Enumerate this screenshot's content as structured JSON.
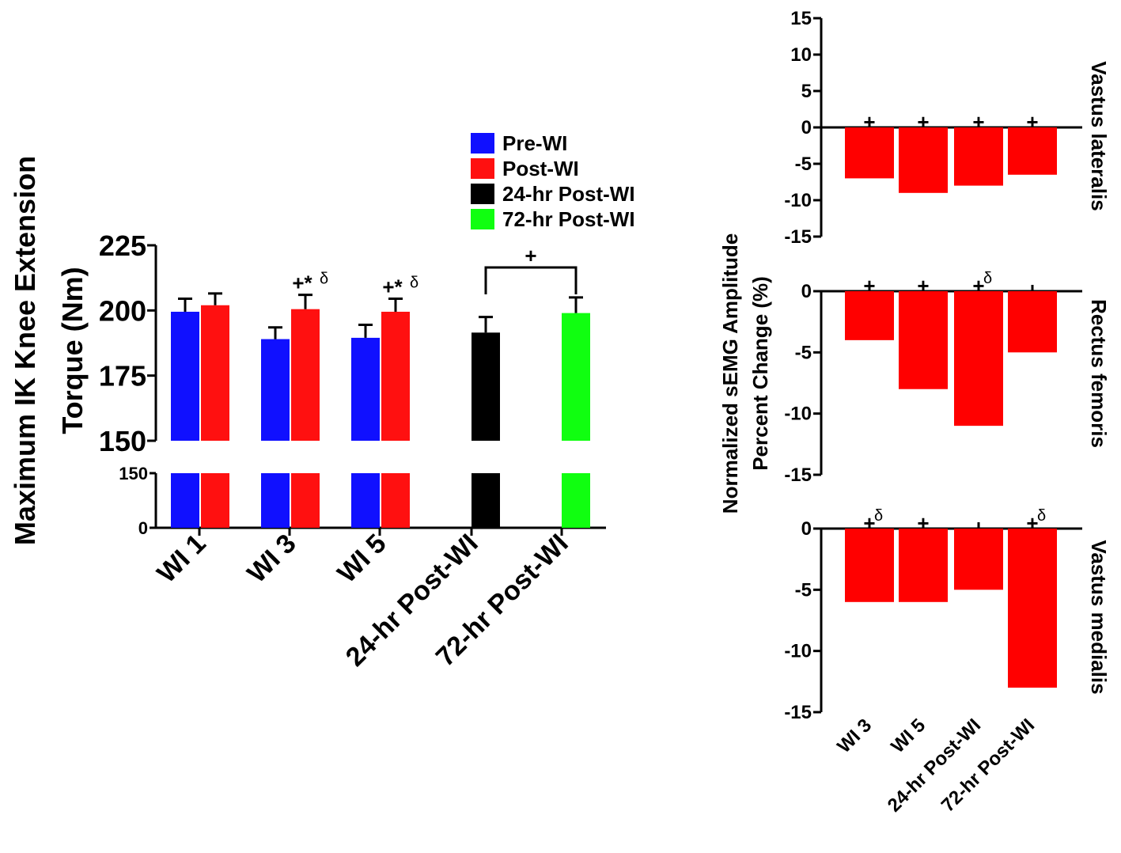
{
  "chart_data": [
    {
      "type": "bar",
      "title": "",
      "ylabel_line1": "Maximum IK Knee Extension",
      "ylabel_line2": "Torque (Nm)",
      "xlabel": "",
      "categories": [
        "WI 1",
        "WI 3",
        "WI 5",
        "24-hr Post-WI",
        "72-hr Post-WI"
      ],
      "axis_break": {
        "upper": {
          "ylim": [
            150,
            225
          ],
          "ticks": [
            "150",
            "175",
            "200",
            "225"
          ]
        },
        "lower": {
          "ylim": [
            0,
            150
          ],
          "ticks": [
            "0",
            "150"
          ]
        }
      },
      "legend": {
        "position": "top-right",
        "entries": [
          {
            "name": "Pre-WI",
            "color": "#1010ff"
          },
          {
            "name": "Post-WI",
            "color": "#ff1010"
          },
          {
            "name": "24-hr  Post-WI",
            "color": "#000000"
          },
          {
            "name": "72-hr Post-WI",
            "color": "#10ff10"
          }
        ]
      },
      "bars": [
        {
          "category": "WI 1",
          "series": "Pre-WI",
          "value": 199.5,
          "error": 5
        },
        {
          "category": "WI 1",
          "series": "Post-WI",
          "value": 202,
          "error": 4.5
        },
        {
          "category": "WI 3",
          "series": "Pre-WI",
          "value": 189,
          "error": 4.5,
          "annotation": ""
        },
        {
          "category": "WI 3",
          "series": "Post-WI",
          "value": 200.5,
          "error": 5.5,
          "annotation": "+*",
          "annotation_sup": "δ"
        },
        {
          "category": "WI 5",
          "series": "Pre-WI",
          "value": 189.5,
          "error": 5
        },
        {
          "category": "WI 5",
          "series": "Post-WI",
          "value": 199.5,
          "error": 5,
          "annotation": "+*",
          "annotation_sup": "δ"
        },
        {
          "category": "24-hr Post-WI",
          "series": "24-hr  Post-WI",
          "value": 191.5,
          "error": 6
        },
        {
          "category": "72-hr Post-WI",
          "series": "72-hr Post-WI",
          "value": 199,
          "error": 6
        }
      ],
      "bracket": {
        "from": "24-hr Post-WI",
        "to": "72-hr Post-WI",
        "label": "+"
      }
    },
    {
      "type": "bar",
      "ylabel_line1": "Normalized sEMG Amplitude",
      "ylabel_line2": "Percent Change (%)",
      "categories": [
        "WI 3",
        "WI 5",
        "24-hr Post-WI",
        "72-hr Post-WI"
      ],
      "color": "#ff0000",
      "panels": [
        {
          "name": "Vastus lateralis",
          "ylim": [
            -15,
            15
          ],
          "ticks": [
            "15",
            "10",
            "5",
            "0",
            "-5",
            "-10",
            "-15"
          ],
          "values": [
            -7,
            -9,
            -8,
            -6.5
          ],
          "marks": [
            "+",
            "+",
            "+",
            "+"
          ],
          "sups": [
            "",
            "",
            "",
            ""
          ]
        },
        {
          "name": "Rectus femoris",
          "ylim": [
            -15,
            0
          ],
          "ticks": [
            "0",
            "-5",
            "-10",
            "-15"
          ],
          "values": [
            -4,
            -8,
            -11,
            -5
          ],
          "marks": [
            "+",
            "+",
            "+",
            ""
          ],
          "sups": [
            "",
            "",
            "δ",
            ""
          ]
        },
        {
          "name": "Vastus medialis",
          "ylim": [
            -15,
            0
          ],
          "ticks": [
            "0",
            "-5",
            "-10",
            "-15"
          ],
          "values": [
            -6,
            -6,
            -5,
            -13
          ],
          "marks": [
            "+",
            "+",
            "",
            "+"
          ],
          "sups": [
            "δ",
            "",
            "",
            "δ"
          ]
        }
      ]
    }
  ]
}
